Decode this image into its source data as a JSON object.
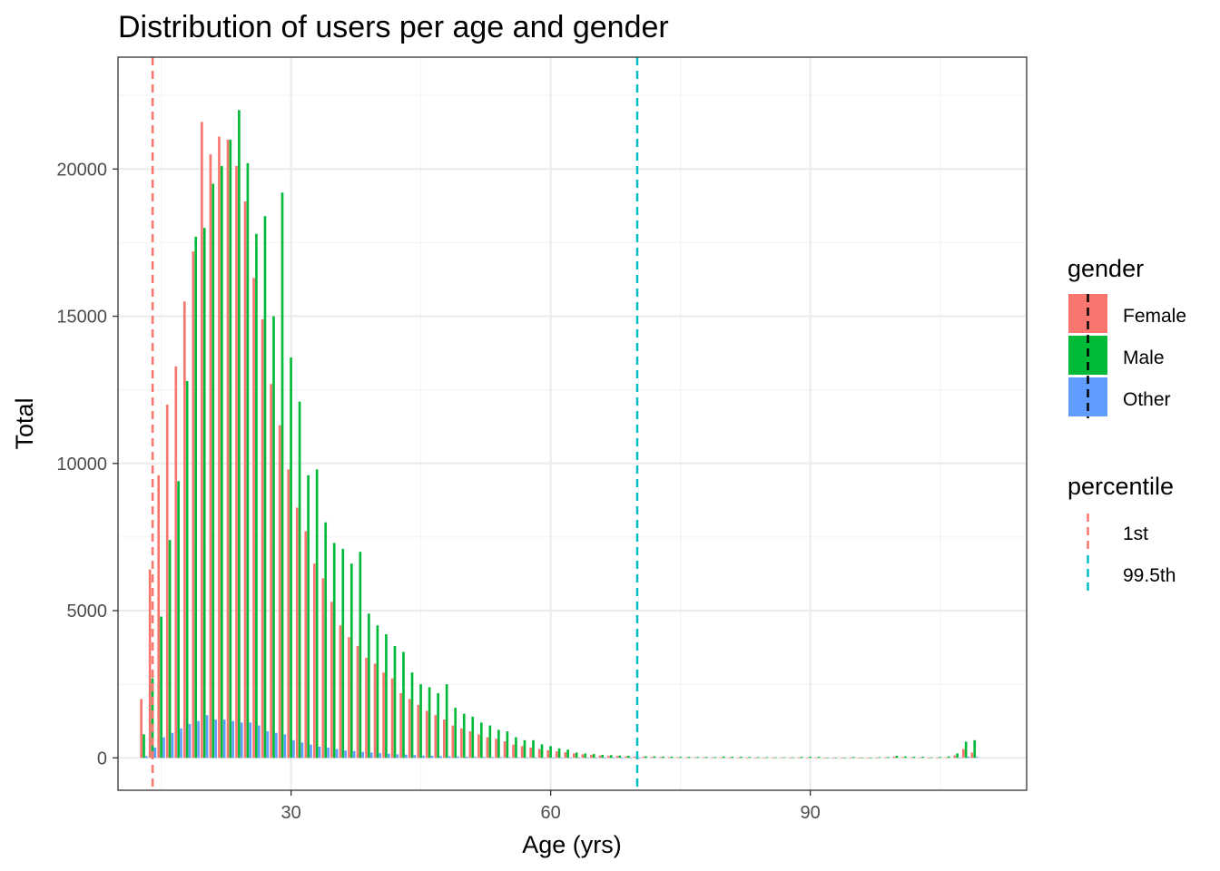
{
  "chart_data": {
    "type": "bar",
    "title": "Distribution of users per age and gender",
    "xlabel": "Age (yrs)",
    "ylabel": "Total",
    "xlim": [
      10,
      115
    ],
    "ylim": [
      -1100,
      23800
    ],
    "x_ticks": [
      30,
      60,
      90
    ],
    "y_ticks": [
      0,
      5000,
      10000,
      15000,
      20000
    ],
    "grid": true,
    "legend_position": "right",
    "series": [
      {
        "name": "Female",
        "color": "#F8766D",
        "points": [
          [
            13,
            2000
          ],
          [
            14,
            6400
          ],
          [
            15,
            9600
          ],
          [
            16,
            12000
          ],
          [
            17,
            13300
          ],
          [
            18,
            15500
          ],
          [
            19,
            17200
          ],
          [
            20,
            21600
          ],
          [
            21,
            20500
          ],
          [
            22,
            21100
          ],
          [
            23,
            21000
          ],
          [
            24,
            20100
          ],
          [
            25,
            18900
          ],
          [
            26,
            16300
          ],
          [
            27,
            14900
          ],
          [
            28,
            12700
          ],
          [
            29,
            11300
          ],
          [
            30,
            9800
          ],
          [
            31,
            8500
          ],
          [
            32,
            7700
          ],
          [
            33,
            6600
          ],
          [
            34,
            6100
          ],
          [
            35,
            5300
          ],
          [
            36,
            4500
          ],
          [
            37,
            4100
          ],
          [
            38,
            3800
          ],
          [
            39,
            3400
          ],
          [
            40,
            3200
          ],
          [
            41,
            2900
          ],
          [
            42,
            2700
          ],
          [
            43,
            2200
          ],
          [
            44,
            2000
          ],
          [
            45,
            1800
          ],
          [
            46,
            1600
          ],
          [
            47,
            1450
          ],
          [
            48,
            1300
          ],
          [
            49,
            1100
          ],
          [
            50,
            1000
          ],
          [
            51,
            900
          ],
          [
            52,
            800
          ],
          [
            53,
            700
          ],
          [
            54,
            650
          ],
          [
            55,
            560
          ],
          [
            56,
            450
          ],
          [
            57,
            400
          ],
          [
            58,
            350
          ],
          [
            59,
            300
          ],
          [
            60,
            260
          ],
          [
            61,
            220
          ],
          [
            62,
            190
          ],
          [
            63,
            150
          ],
          [
            64,
            120
          ],
          [
            65,
            100
          ],
          [
            66,
            80
          ],
          [
            67,
            70
          ],
          [
            68,
            60
          ],
          [
            69,
            50
          ],
          [
            70,
            40
          ],
          [
            71,
            35
          ],
          [
            72,
            30
          ],
          [
            73,
            25
          ],
          [
            74,
            25
          ],
          [
            75,
            20
          ],
          [
            76,
            20
          ],
          [
            77,
            20
          ],
          [
            78,
            18
          ],
          [
            79,
            15
          ],
          [
            80,
            15
          ],
          [
            81,
            15
          ],
          [
            82,
            12
          ],
          [
            83,
            12
          ],
          [
            84,
            10
          ],
          [
            85,
            10
          ],
          [
            86,
            8
          ],
          [
            87,
            8
          ],
          [
            88,
            8
          ],
          [
            89,
            6
          ],
          [
            90,
            6
          ],
          [
            91,
            6
          ],
          [
            92,
            5
          ],
          [
            93,
            5
          ],
          [
            94,
            5
          ],
          [
            95,
            5
          ],
          [
            96,
            5
          ],
          [
            97,
            5
          ],
          [
            98,
            10
          ],
          [
            99,
            15
          ],
          [
            100,
            40
          ],
          [
            101,
            25
          ],
          [
            102,
            20
          ],
          [
            103,
            12
          ],
          [
            104,
            10
          ],
          [
            105,
            10
          ],
          [
            106,
            15
          ],
          [
            107,
            80
          ],
          [
            108,
            300
          ],
          [
            109,
            180
          ]
        ]
      },
      {
        "name": "Male",
        "color": "#00BA38",
        "points": [
          [
            13,
            800
          ],
          [
            14,
            2700
          ],
          [
            15,
            4800
          ],
          [
            16,
            7400
          ],
          [
            17,
            9400
          ],
          [
            18,
            12800
          ],
          [
            19,
            17700
          ],
          [
            20,
            18000
          ],
          [
            21,
            19500
          ],
          [
            22,
            20100
          ],
          [
            23,
            21000
          ],
          [
            24,
            22000
          ],
          [
            25,
            20200
          ],
          [
            26,
            17800
          ],
          [
            27,
            18400
          ],
          [
            28,
            15000
          ],
          [
            29,
            19200
          ],
          [
            30,
            13600
          ],
          [
            31,
            12100
          ],
          [
            32,
            9600
          ],
          [
            33,
            9800
          ],
          [
            34,
            8000
          ],
          [
            35,
            7300
          ],
          [
            36,
            7100
          ],
          [
            37,
            6600
          ],
          [
            38,
            7000
          ],
          [
            39,
            4900
          ],
          [
            40,
            4500
          ],
          [
            41,
            4200
          ],
          [
            42,
            3800
          ],
          [
            43,
            3600
          ],
          [
            44,
            2900
          ],
          [
            45,
            2500
          ],
          [
            46,
            2400
          ],
          [
            47,
            2200
          ],
          [
            48,
            2500
          ],
          [
            49,
            1700
          ],
          [
            50,
            1500
          ],
          [
            51,
            1400
          ],
          [
            52,
            1200
          ],
          [
            53,
            1100
          ],
          [
            54,
            950
          ],
          [
            55,
            900
          ],
          [
            56,
            700
          ],
          [
            57,
            600
          ],
          [
            58,
            600
          ],
          [
            59,
            460
          ],
          [
            60,
            400
          ],
          [
            61,
            320
          ],
          [
            62,
            280
          ],
          [
            63,
            180
          ],
          [
            64,
            150
          ],
          [
            65,
            130
          ],
          [
            66,
            100
          ],
          [
            67,
            90
          ],
          [
            68,
            80
          ],
          [
            69,
            70
          ],
          [
            70,
            60
          ],
          [
            71,
            55
          ],
          [
            72,
            50
          ],
          [
            73,
            45
          ],
          [
            74,
            40
          ],
          [
            75,
            35
          ],
          [
            76,
            35
          ],
          [
            77,
            30
          ],
          [
            78,
            30
          ],
          [
            79,
            28
          ],
          [
            80,
            45
          ],
          [
            81,
            40
          ],
          [
            82,
            40
          ],
          [
            83,
            30
          ],
          [
            84,
            25
          ],
          [
            85,
            25
          ],
          [
            86,
            20
          ],
          [
            87,
            20
          ],
          [
            88,
            18
          ],
          [
            89,
            35
          ],
          [
            90,
            40
          ],
          [
            91,
            35
          ],
          [
            92,
            12
          ],
          [
            93,
            10
          ],
          [
            94,
            8
          ],
          [
            95,
            30
          ],
          [
            96,
            10
          ],
          [
            97,
            10
          ],
          [
            98,
            25
          ],
          [
            99,
            30
          ],
          [
            100,
            70
          ],
          [
            101,
            50
          ],
          [
            102,
            40
          ],
          [
            103,
            40
          ],
          [
            104,
            20
          ],
          [
            105,
            30
          ],
          [
            106,
            50
          ],
          [
            107,
            150
          ],
          [
            108,
            550
          ],
          [
            109,
            600
          ]
        ]
      },
      {
        "name": "Other",
        "color": "#619CFF",
        "points": [
          [
            13,
            60
          ],
          [
            14,
            350
          ],
          [
            15,
            700
          ],
          [
            16,
            850
          ],
          [
            17,
            1000
          ],
          [
            18,
            1150
          ],
          [
            19,
            1250
          ],
          [
            20,
            1450
          ],
          [
            21,
            1300
          ],
          [
            22,
            1300
          ],
          [
            23,
            1250
          ],
          [
            24,
            1200
          ],
          [
            25,
            1200
          ],
          [
            26,
            1100
          ],
          [
            27,
            900
          ],
          [
            28,
            850
          ],
          [
            29,
            800
          ],
          [
            30,
            600
          ],
          [
            31,
            520
          ],
          [
            32,
            450
          ],
          [
            33,
            380
          ],
          [
            34,
            350
          ],
          [
            35,
            300
          ],
          [
            36,
            250
          ],
          [
            37,
            230
          ],
          [
            38,
            200
          ],
          [
            39,
            180
          ],
          [
            40,
            160
          ],
          [
            41,
            140
          ],
          [
            42,
            120
          ],
          [
            43,
            110
          ],
          [
            44,
            95
          ],
          [
            45,
            80
          ],
          [
            46,
            70
          ],
          [
            47,
            60
          ],
          [
            48,
            55
          ],
          [
            49,
            45
          ],
          [
            50,
            40
          ],
          [
            51,
            35
          ],
          [
            52,
            30
          ],
          [
            53,
            25
          ],
          [
            54,
            22
          ],
          [
            55,
            20
          ],
          [
            56,
            18
          ],
          [
            57,
            15
          ],
          [
            58,
            12
          ],
          [
            59,
            10
          ],
          [
            60,
            9
          ],
          [
            61,
            8
          ],
          [
            62,
            7
          ],
          [
            63,
            6
          ],
          [
            64,
            5
          ],
          [
            65,
            5
          ],
          [
            66,
            4
          ],
          [
            67,
            4
          ],
          [
            68,
            3
          ],
          [
            69,
            3
          ],
          [
            70,
            3
          ],
          [
            107,
            5
          ],
          [
            108,
            40
          ],
          [
            109,
            30
          ]
        ]
      }
    ],
    "reference_lines": [
      {
        "name": "1st",
        "x": 14,
        "color": "#F8766D"
      },
      {
        "name": "99.5th",
        "x": 70,
        "color": "#00BFC4"
      }
    ],
    "legend": {
      "gender_title": "gender",
      "gender_items": [
        "Female",
        "Male",
        "Other"
      ],
      "percentile_title": "percentile",
      "percentile_items": [
        "1st",
        "99.5th"
      ]
    }
  }
}
